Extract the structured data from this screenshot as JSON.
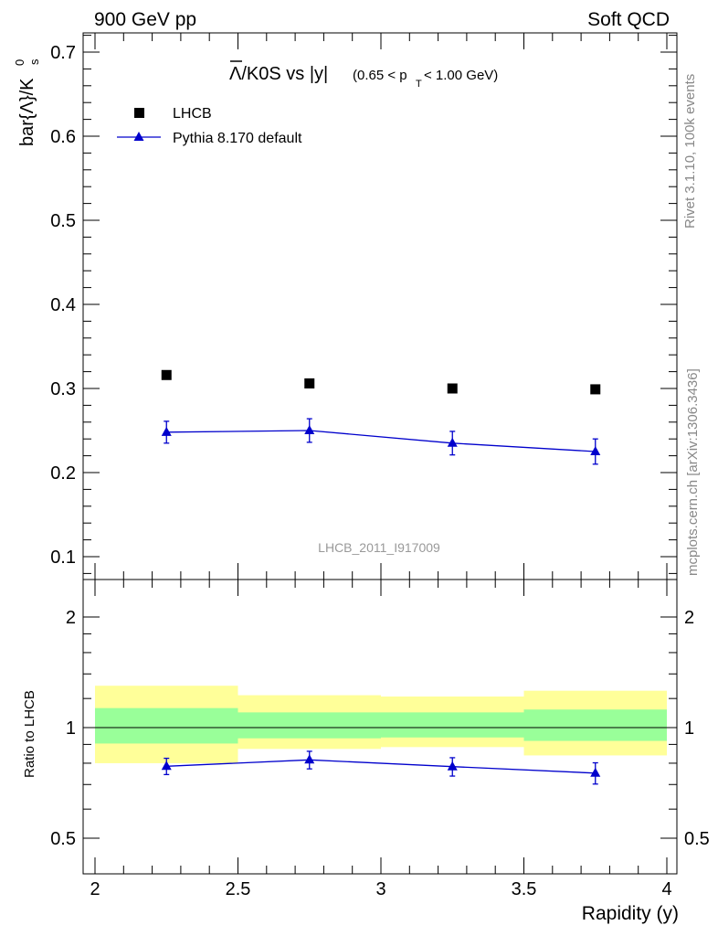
{
  "header": {
    "left": "900 GeV pp",
    "right": "Soft QCD"
  },
  "side_text": {
    "rivet": "Rivet 3.1.10,  100k events",
    "mcplots": "mcplots.cern.ch [arXiv:1306.3436]"
  },
  "title": {
    "main": "Λ/K0S vs |y|",
    "sub_prefix": "(0.65 < p",
    "sub_subscript": "T",
    "sub_suffix": " < 1.00 GeV)"
  },
  "analysis_label": "LHCB_2011_I917009",
  "legend": {
    "data_label": "LHCB",
    "mc_label": "Pythia 8.170 default"
  },
  "colors": {
    "data": "#000000",
    "mc": "#0000cc",
    "band_inner": "#99ff99",
    "band_outer": "#ffff99"
  },
  "chart_data": [
    {
      "type": "scatter",
      "panel": "main",
      "ylabel": "bar{Λ}/K",
      "ylabel_sup": "0",
      "ylabel_sub": "s",
      "xlim": [
        2.0,
        4.0
      ],
      "ylim": [
        0.08,
        0.725
      ],
      "yticks": [
        "0.1",
        "0.2",
        "0.3",
        "0.4",
        "0.5",
        "0.6",
        "0.7"
      ],
      "ytick_values": [
        0.1,
        0.2,
        0.3,
        0.4,
        0.5,
        0.6,
        0.7
      ],
      "series": [
        {
          "name": "LHCB",
          "marker": "square",
          "points": [
            {
              "x": 2.25,
              "y": 0.316
            },
            {
              "x": 2.75,
              "y": 0.306
            },
            {
              "x": 3.25,
              "y": 0.3
            },
            {
              "x": 3.75,
              "y": 0.299
            }
          ]
        },
        {
          "name": "Pythia 8.170 default",
          "marker": "triangle",
          "points": [
            {
              "x": 2.25,
              "y": 0.248,
              "err": 0.013
            },
            {
              "x": 2.75,
              "y": 0.25,
              "err": 0.014
            },
            {
              "x": 3.25,
              "y": 0.235,
              "err": 0.014
            },
            {
              "x": 3.75,
              "y": 0.225,
              "err": 0.015
            }
          ]
        }
      ]
    },
    {
      "type": "scatter",
      "panel": "ratio",
      "xlabel": "Rapidity (y)",
      "ylabel": "Ratio to LHCB",
      "xlim": [
        2.0,
        4.0
      ],
      "ylim": [
        0.5,
        2.0
      ],
      "log_y": true,
      "xticks": [
        "2",
        "2.5",
        "3",
        "3.5",
        "4"
      ],
      "xtick_values": [
        2.0,
        2.5,
        3.0,
        3.5,
        4.0
      ],
      "yticks": [
        "0.5",
        "1",
        "2"
      ],
      "ytick_values": [
        0.5,
        1.0,
        2.0
      ],
      "bands": [
        {
          "x": [
            2.0,
            2.5
          ],
          "inner": [
            0.905,
            1.13
          ],
          "outer": [
            0.8,
            1.3
          ]
        },
        {
          "x": [
            2.5,
            3.0
          ],
          "inner": [
            0.935,
            1.1
          ],
          "outer": [
            0.875,
            1.225
          ]
        },
        {
          "x": [
            3.0,
            3.5
          ],
          "inner": [
            0.94,
            1.1
          ],
          "outer": [
            0.885,
            1.215
          ]
        },
        {
          "x": [
            3.5,
            4.0
          ],
          "inner": [
            0.92,
            1.12
          ],
          "outer": [
            0.84,
            1.26
          ]
        }
      ],
      "series": [
        {
          "name": "Pythia 8.170 default",
          "points": [
            {
              "x": 2.25,
              "y": 0.785,
              "err": 0.04
            },
            {
              "x": 2.75,
              "y": 0.817,
              "err": 0.045
            },
            {
              "x": 3.25,
              "y": 0.783,
              "err": 0.045
            },
            {
              "x": 3.75,
              "y": 0.752,
              "err": 0.05
            }
          ]
        }
      ]
    }
  ]
}
